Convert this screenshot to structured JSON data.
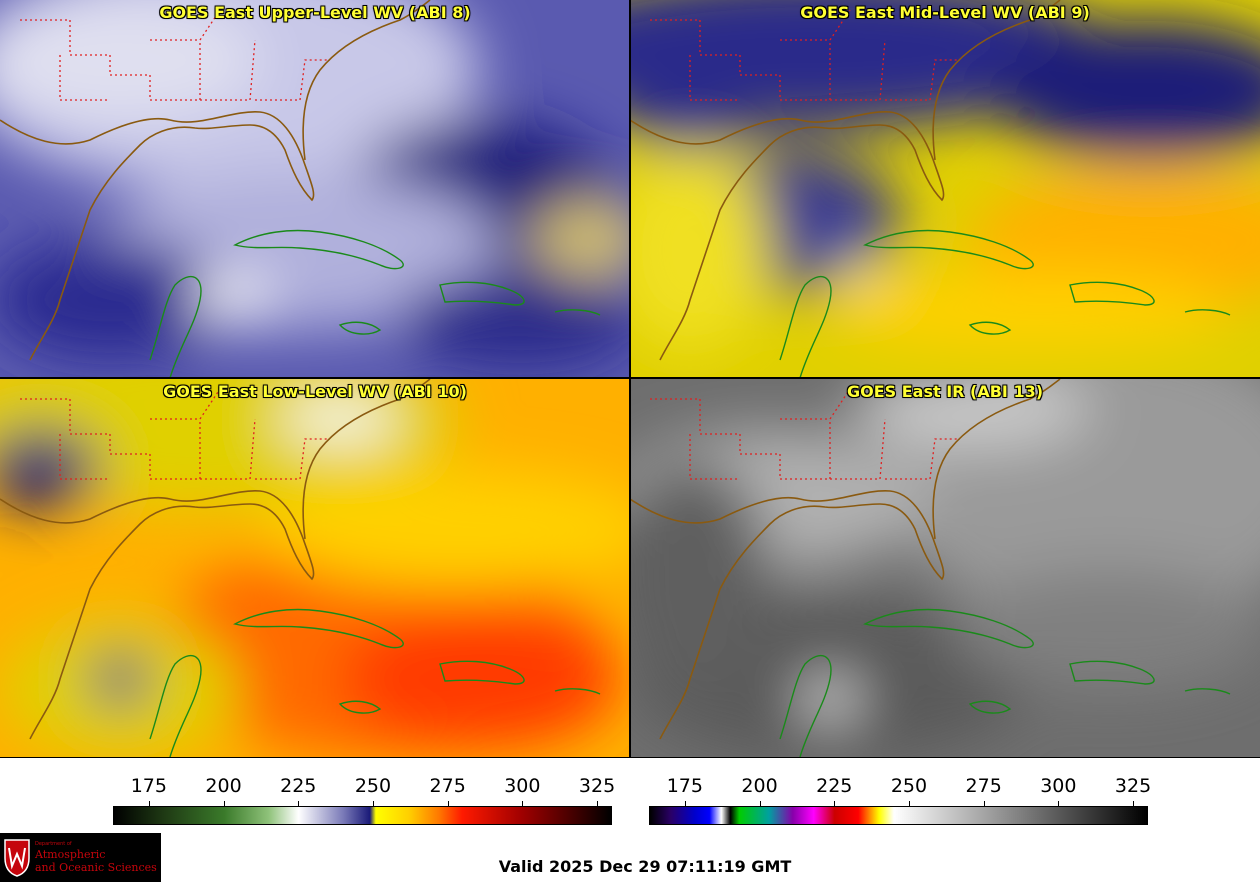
{
  "panels": [
    {
      "title": "GOES East Upper-Level WV (ABI 8)",
      "scheme": "upper"
    },
    {
      "title": "GOES East Mid-Level WV (ABI 9)",
      "scheme": "mid"
    },
    {
      "title": "GOES East Low-Level WV (ABI 10)",
      "scheme": "low"
    },
    {
      "title": "GOES East IR (ABI 13)",
      "scheme": "ir"
    }
  ],
  "colorbars": {
    "wv": {
      "ticks": [
        "175",
        "200",
        "225",
        "250",
        "275",
        "300",
        "325"
      ],
      "range": [
        163,
        330
      ],
      "stops": [
        {
          "v": 163,
          "c": "#000000"
        },
        {
          "v": 180,
          "c": "#1f3a14"
        },
        {
          "v": 200,
          "c": "#3a7a2a"
        },
        {
          "v": 215,
          "c": "#8fc27a"
        },
        {
          "v": 225,
          "c": "#ffffff"
        },
        {
          "v": 240,
          "c": "#7a7ab8"
        },
        {
          "v": 249,
          "c": "#1a1a78"
        },
        {
          "v": 251,
          "c": "#ffff00"
        },
        {
          "v": 262,
          "c": "#ffd000"
        },
        {
          "v": 272,
          "c": "#ff7a00"
        },
        {
          "v": 280,
          "c": "#ff1a00"
        },
        {
          "v": 300,
          "c": "#a00000"
        },
        {
          "v": 330,
          "c": "#000000"
        }
      ]
    },
    "ir": {
      "ticks": [
        "175",
        "200",
        "225",
        "250",
        "275",
        "300",
        "325"
      ],
      "range": [
        163,
        330
      ],
      "stops": [
        {
          "v": 163,
          "c": "#000000"
        },
        {
          "v": 170,
          "c": "#2a0066"
        },
        {
          "v": 178,
          "c": "#0000cc"
        },
        {
          "v": 183,
          "c": "#0000ff"
        },
        {
          "v": 187,
          "c": "#ffffff"
        },
        {
          "v": 190,
          "c": "#000000"
        },
        {
          "v": 193,
          "c": "#00cc00"
        },
        {
          "v": 203,
          "c": "#00a0a0"
        },
        {
          "v": 211,
          "c": "#8800aa"
        },
        {
          "v": 218,
          "c": "#ff00ff"
        },
        {
          "v": 225,
          "c": "#cc0000"
        },
        {
          "v": 233,
          "c": "#ff0000"
        },
        {
          "v": 240,
          "c": "#ffff00"
        },
        {
          "v": 245,
          "c": "#ffffff"
        },
        {
          "v": 330,
          "c": "#000000"
        }
      ]
    }
  },
  "logo": {
    "dept": "Department of",
    "line1": "Atmospheric",
    "line2": "and Oceanic Sciences"
  },
  "valid_time": "Valid 2025 Dec 29 07:11:19 GMT"
}
